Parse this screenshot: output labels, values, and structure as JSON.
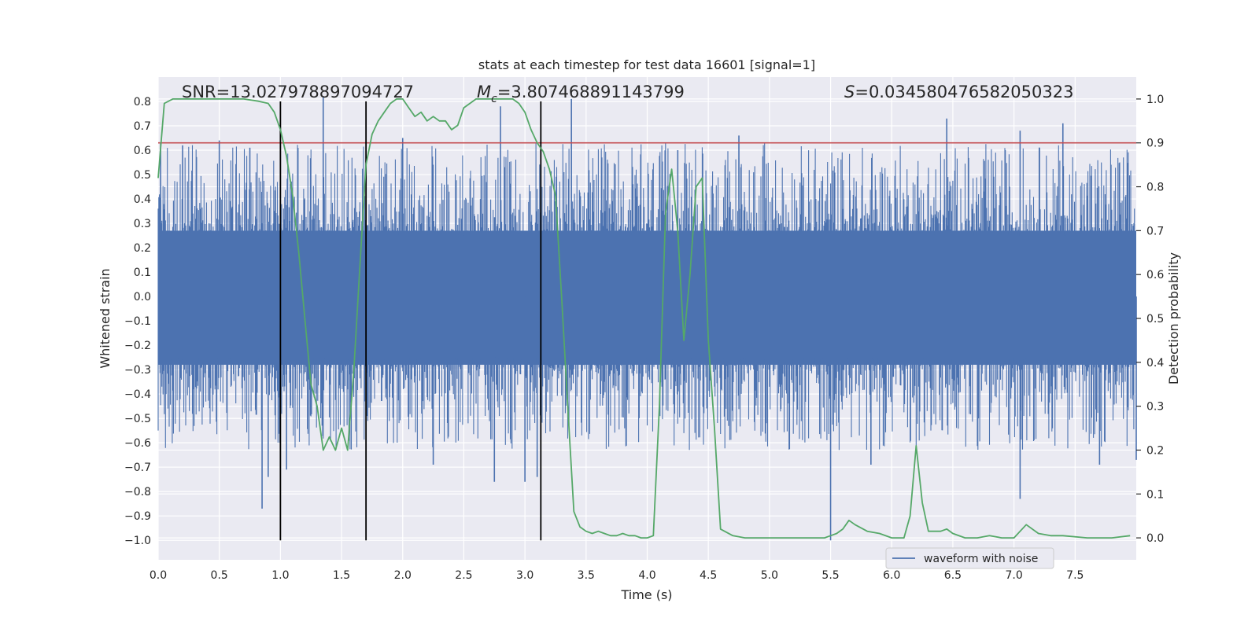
{
  "chart_data": {
    "type": "line",
    "title": "stats at each timestep for test data 16601 [signal=1]",
    "xlabel": "Time (s)",
    "ylabel_left": "Whitened strain",
    "ylabel_right": "Detection probability",
    "xlim": [
      0.0,
      8.0
    ],
    "ylim_left": [
      -1.08,
      0.9
    ],
    "ylim_right": [
      -0.05,
      1.05
    ],
    "xticks": [
      0.0,
      0.5,
      1.0,
      1.5,
      2.0,
      2.5,
      3.0,
      3.5,
      4.0,
      4.5,
      5.0,
      5.5,
      6.0,
      6.5,
      7.0,
      7.5
    ],
    "xtick_labels": [
      "0.0",
      "0.5",
      "1.0",
      "1.5",
      "2.0",
      "2.5",
      "3.0",
      "3.5",
      "4.0",
      "4.5",
      "5.0",
      "5.5",
      "6.0",
      "6.5",
      "7.0",
      "7.5"
    ],
    "yticks_left": [
      0.8,
      0.7,
      0.6,
      0.5,
      0.4,
      0.3,
      0.2,
      0.1,
      0.0,
      -0.1,
      -0.2,
      -0.3,
      -0.4,
      -0.5,
      -0.6,
      -0.7,
      -0.8,
      -0.9,
      -1.0
    ],
    "ytick_labels_left": [
      "0.8",
      "0.7",
      "0.6",
      "0.5",
      "0.4",
      "0.3",
      "0.2",
      "0.1",
      "0.0",
      "−0.1",
      "−0.2",
      "−0.3",
      "−0.4",
      "−0.5",
      "−0.6",
      "−0.7",
      "−0.8",
      "−0.9",
      "−1.0"
    ],
    "yticks_right": [
      1.0,
      0.9,
      0.8,
      0.7,
      0.6,
      0.5,
      0.4,
      0.3,
      0.2,
      0.1,
      0.0
    ],
    "ytick_labels_right": [
      "1.0",
      "0.9",
      "0.8",
      "0.7",
      "0.6",
      "0.5",
      "0.4",
      "0.3",
      "0.2",
      "0.1",
      "0.0"
    ],
    "annotations": {
      "snr": "SNR=13.027978897094727",
      "mc_symbol": "M",
      "mc_sub": "c",
      "mc_value": "=3.807468891143799",
      "s_symbol": "S",
      "s_value": "=0.034580476582050323"
    },
    "threshold": {
      "value": 0.9,
      "axis": "right",
      "color": "#c44e52"
    },
    "vertical_lines": {
      "x": [
        1.0,
        1.7,
        3.13
      ],
      "ymin": -1.0,
      "ymax": 0.8,
      "color": "#000000"
    },
    "waveform": {
      "name": "waveform with noise",
      "color": "#4c72b0",
      "t_start": 0.0,
      "t_end": 8.0,
      "core_band": [
        -0.28,
        0.27
      ],
      "max_spikes": [
        {
          "x": 0.02,
          "y": 0.63
        },
        {
          "x": 0.2,
          "y": 0.62
        },
        {
          "x": 0.5,
          "y": 0.64
        },
        {
          "x": 0.75,
          "y": 0.61
        },
        {
          "x": 1.35,
          "y": 0.82
        },
        {
          "x": 2.0,
          "y": 0.65
        },
        {
          "x": 2.8,
          "y": 0.78
        },
        {
          "x": 3.38,
          "y": 0.81
        },
        {
          "x": 4.25,
          "y": 0.6
        },
        {
          "x": 4.75,
          "y": 0.66
        },
        {
          "x": 6.45,
          "y": 0.73
        },
        {
          "x": 7.05,
          "y": 0.68
        },
        {
          "x": 7.4,
          "y": 0.71
        }
      ],
      "min_spikes": [
        {
          "x": 0.85,
          "y": -0.87
        },
        {
          "x": 0.9,
          "y": -0.74
        },
        {
          "x": 1.05,
          "y": -0.71
        },
        {
          "x": 2.25,
          "y": -0.69
        },
        {
          "x": 2.75,
          "y": -0.76
        },
        {
          "x": 3.0,
          "y": -0.76
        },
        {
          "x": 3.1,
          "y": -0.74
        },
        {
          "x": 5.5,
          "y": -1.0
        },
        {
          "x": 5.83,
          "y": -0.69
        },
        {
          "x": 7.05,
          "y": -0.83
        },
        {
          "x": 7.7,
          "y": -0.69
        },
        {
          "x": 8.0,
          "y": -0.67
        }
      ]
    },
    "probability_series": {
      "name": "Detection probability",
      "color": "#55a868",
      "x": [
        0.0,
        0.05,
        0.12,
        0.25,
        0.4,
        0.55,
        0.7,
        0.82,
        0.9,
        0.95,
        1.0,
        1.05,
        1.1,
        1.15,
        1.2,
        1.25,
        1.3,
        1.35,
        1.4,
        1.45,
        1.5,
        1.55,
        1.6,
        1.65,
        1.7,
        1.75,
        1.8,
        1.85,
        1.9,
        1.95,
        2.0,
        2.05,
        2.1,
        2.15,
        2.2,
        2.25,
        2.3,
        2.35,
        2.4,
        2.45,
        2.5,
        2.55,
        2.6,
        2.65,
        2.7,
        2.75,
        2.8,
        2.85,
        2.9,
        2.95,
        3.0,
        3.05,
        3.1,
        3.15,
        3.2,
        3.25,
        3.3,
        3.35,
        3.4,
        3.45,
        3.5,
        3.55,
        3.6,
        3.65,
        3.7,
        3.75,
        3.8,
        3.85,
        3.9,
        3.95,
        4.0,
        4.05,
        4.1,
        4.15,
        4.2,
        4.25,
        4.3,
        4.35,
        4.4,
        4.45,
        4.5,
        4.55,
        4.6,
        4.7,
        4.8,
        5.0,
        5.2,
        5.45,
        5.5,
        5.55,
        5.6,
        5.65,
        5.7,
        5.8,
        5.9,
        6.0,
        6.1,
        6.15,
        6.2,
        6.25,
        6.3,
        6.4,
        6.45,
        6.5,
        6.6,
        6.7,
        6.8,
        6.9,
        7.0,
        7.05,
        7.1,
        7.2,
        7.3,
        7.4,
        7.6,
        7.8,
        7.95
      ],
      "y": [
        0.82,
        0.99,
        1.0,
        1.0,
        1.0,
        1.0,
        1.0,
        0.995,
        0.99,
        0.97,
        0.93,
        0.87,
        0.78,
        0.65,
        0.5,
        0.35,
        0.3,
        0.2,
        0.23,
        0.2,
        0.25,
        0.2,
        0.38,
        0.62,
        0.85,
        0.92,
        0.95,
        0.97,
        0.99,
        1.0,
        1.0,
        0.98,
        0.96,
        0.97,
        0.95,
        0.96,
        0.95,
        0.95,
        0.93,
        0.94,
        0.98,
        0.99,
        1.0,
        1.0,
        1.0,
        1.0,
        1.0,
        1.0,
        1.0,
        0.99,
        0.97,
        0.93,
        0.9,
        0.88,
        0.84,
        0.78,
        0.55,
        0.3,
        0.06,
        0.025,
        0.015,
        0.01,
        0.015,
        0.01,
        0.005,
        0.005,
        0.01,
        0.005,
        0.005,
        0.0,
        0.0,
        0.005,
        0.3,
        0.74,
        0.84,
        0.7,
        0.45,
        0.6,
        0.8,
        0.82,
        0.45,
        0.25,
        0.02,
        0.005,
        0.0,
        0.0,
        0.0,
        0.0,
        0.005,
        0.01,
        0.02,
        0.04,
        0.03,
        0.015,
        0.01,
        0.0,
        0.0,
        0.05,
        0.21,
        0.08,
        0.015,
        0.015,
        0.02,
        0.01,
        0.0,
        0.0,
        0.005,
        0.0,
        0.0,
        0.015,
        0.03,
        0.01,
        0.005,
        0.005,
        0.0,
        0.0,
        0.005
      ]
    },
    "legend": {
      "position": "lower-right",
      "entries": [
        "waveform with noise"
      ]
    },
    "grid": true,
    "style": {
      "background": "#eaeaf2",
      "grid_color": "#ffffff"
    }
  }
}
